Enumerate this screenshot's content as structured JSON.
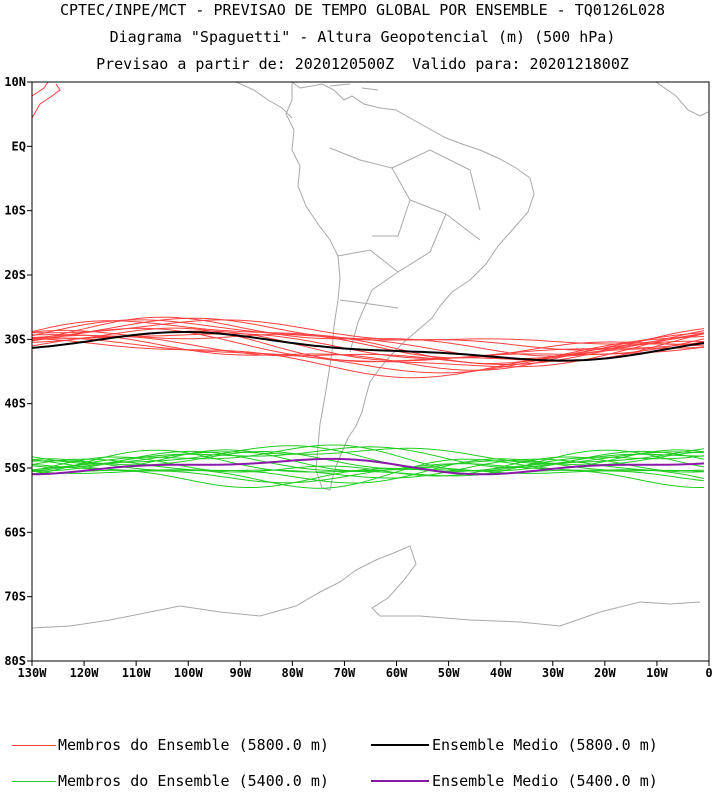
{
  "header": {
    "line1": "CPTEC/INPE/MCT - PREVISAO DE TEMPO GLOBAL POR ENSEMBLE - TQ0126L028",
    "line2": "Diagrama \"Spaguetti\" - Altura Geopotencial (m) (500 hPa)",
    "line3": "Previsao a partir de: 2020120500Z  Valido para: 2020121800Z"
  },
  "axes": {
    "lat_labels": [
      "10N",
      "EQ",
      "10S",
      "20S",
      "30S",
      "40S",
      "50S",
      "60S",
      "70S",
      "80S"
    ],
    "lon_labels": [
      "130W",
      "120W",
      "110W",
      "100W",
      "90W",
      "80W",
      "70W",
      "60W",
      "50W",
      "40W",
      "30W",
      "20W",
      "10W",
      "0"
    ]
  },
  "legend": [
    {
      "label": "Membros do Ensemble (5800.0 m)",
      "color": "#ff4040"
    },
    {
      "label": "Ensemble Medio (5800.0 m)",
      "color": "#000000"
    },
    {
      "label": "Membros do Ensemble (5400.0 m)",
      "color": "#22cc22"
    },
    {
      "label": "Ensemble Medio (5400.0 m)",
      "color": "#8a1aa8"
    }
  ],
  "colors": {
    "member_5800": "#ff4040",
    "mean_5800": "#000000",
    "member_5400": "#22cc22",
    "mean_5400": "#8a1aa8",
    "coastline": "#a8a8a8"
  }
}
